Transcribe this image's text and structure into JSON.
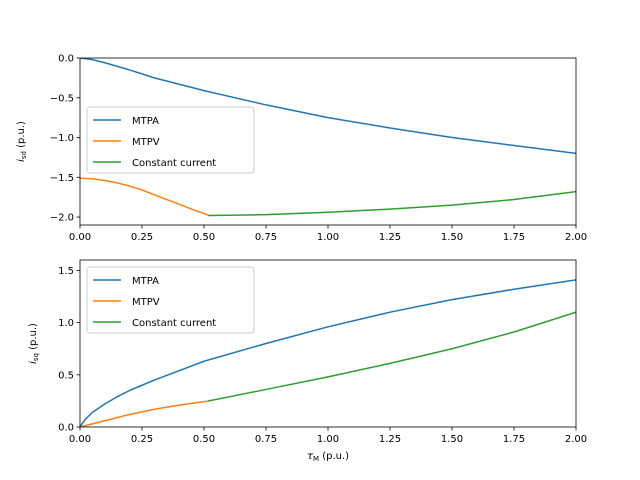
{
  "chart_data": [
    {
      "type": "line",
      "xlabel_html": "",
      "ylabel_main": "i",
      "ylabel_sub": "sd",
      "ylabel_unit": " (p.u.)",
      "xlim": [
        0,
        2
      ],
      "ylim": [
        -2.1,
        0
      ],
      "xticks": [
        0,
        0.25,
        0.5,
        0.75,
        1.0,
        1.25,
        1.5,
        1.75,
        2.0
      ],
      "xtick_labels": [
        "0.00",
        "0.25",
        "0.50",
        "0.75",
        "1.00",
        "1.25",
        "1.50",
        "1.75",
        "2.00"
      ],
      "yticks": [
        0,
        -0.5,
        -1.0,
        -1.5,
        -2.0
      ],
      "ytick_labels": [
        "0.0",
        "−0.5",
        "−1.0",
        "−1.5",
        "−2.0"
      ],
      "legend_position": "center-left",
      "series": [
        {
          "name": "MTPA",
          "color": "#1f77b4",
          "points": [
            [
              0,
              0
            ],
            [
              0.05,
              -0.02
            ],
            [
              0.1,
              -0.06
            ],
            [
              0.2,
              -0.15
            ],
            [
              0.3,
              -0.25
            ],
            [
              0.4,
              -0.33
            ],
            [
              0.5,
              -0.41
            ],
            [
              0.75,
              -0.59
            ],
            [
              1.0,
              -0.75
            ],
            [
              1.25,
              -0.88
            ],
            [
              1.5,
              -1.0
            ],
            [
              1.75,
              -1.1
            ],
            [
              2.0,
              -1.2
            ]
          ]
        },
        {
          "name": "MTPV",
          "color": "#ff7f0e",
          "points": [
            [
              0,
              -1.51
            ],
            [
              0.05,
              -1.52
            ],
            [
              0.1,
              -1.54
            ],
            [
              0.15,
              -1.57
            ],
            [
              0.2,
              -1.61
            ],
            [
              0.25,
              -1.66
            ],
            [
              0.3,
              -1.72
            ],
            [
              0.35,
              -1.78
            ],
            [
              0.4,
              -1.84
            ],
            [
              0.45,
              -1.9
            ],
            [
              0.52,
              -1.98
            ]
          ]
        },
        {
          "name": "Constant current",
          "color": "#2ca02c",
          "points": [
            [
              0.52,
              -1.98
            ],
            [
              0.75,
              -1.97
            ],
            [
              1.0,
              -1.94
            ],
            [
              1.25,
              -1.9
            ],
            [
              1.5,
              -1.85
            ],
            [
              1.75,
              -1.78
            ],
            [
              2.0,
              -1.68
            ]
          ]
        }
      ]
    },
    {
      "type": "line",
      "xlabel_main": "τ",
      "xlabel_sub": "M",
      "xlabel_unit": " (p.u.)",
      "ylabel_main": "i",
      "ylabel_sub": "sq",
      "ylabel_unit": " (p.u.)",
      "xlim": [
        0,
        2
      ],
      "ylim": [
        0,
        1.6
      ],
      "xticks": [
        0,
        0.25,
        0.5,
        0.75,
        1.0,
        1.25,
        1.5,
        1.75,
        2.0
      ],
      "xtick_labels": [
        "0.00",
        "0.25",
        "0.50",
        "0.75",
        "1.00",
        "1.25",
        "1.50",
        "1.75",
        "2.00"
      ],
      "yticks": [
        0,
        0.5,
        1.0,
        1.5
      ],
      "ytick_labels": [
        "0.0",
        "0.5",
        "1.0",
        "1.5"
      ],
      "legend_position": "top-left",
      "series": [
        {
          "name": "MTPA",
          "color": "#1f77b4",
          "points": [
            [
              0,
              0
            ],
            [
              0.02,
              0.07
            ],
            [
              0.05,
              0.14
            ],
            [
              0.1,
              0.22
            ],
            [
              0.15,
              0.29
            ],
            [
              0.2,
              0.35
            ],
            [
              0.25,
              0.4
            ],
            [
              0.3,
              0.45
            ],
            [
              0.4,
              0.54
            ],
            [
              0.5,
              0.63
            ],
            [
              0.75,
              0.8
            ],
            [
              1.0,
              0.96
            ],
            [
              1.25,
              1.1
            ],
            [
              1.5,
              1.22
            ],
            [
              1.75,
              1.32
            ],
            [
              2.0,
              1.41
            ]
          ]
        },
        {
          "name": "MTPV",
          "color": "#ff7f0e",
          "points": [
            [
              0,
              0
            ],
            [
              0.05,
              0.03
            ],
            [
              0.1,
              0.06
            ],
            [
              0.2,
              0.12
            ],
            [
              0.3,
              0.17
            ],
            [
              0.4,
              0.21
            ],
            [
              0.52,
              0.25
            ]
          ]
        },
        {
          "name": "Constant current",
          "color": "#2ca02c",
          "points": [
            [
              0.52,
              0.25
            ],
            [
              0.75,
              0.36
            ],
            [
              1.0,
              0.48
            ],
            [
              1.25,
              0.61
            ],
            [
              1.5,
              0.75
            ],
            [
              1.75,
              0.91
            ],
            [
              2.0,
              1.1
            ]
          ]
        }
      ]
    }
  ]
}
